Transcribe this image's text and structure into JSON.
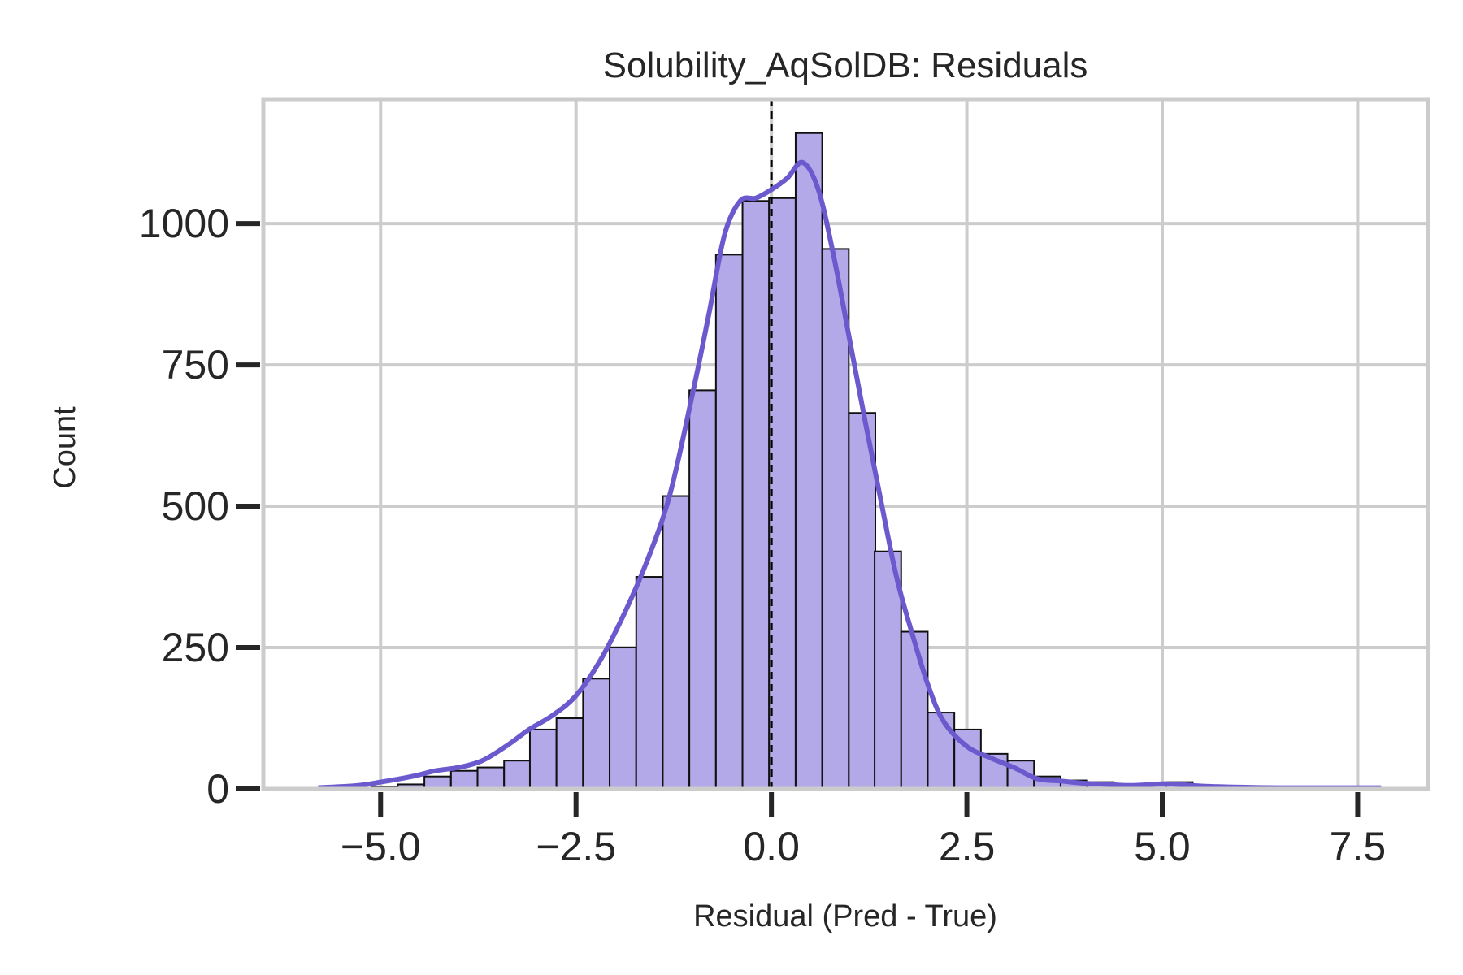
{
  "chart_data": {
    "type": "bar",
    "subtype": "histogram-with-kde",
    "title": "Solubility_AqSolDB: Residuals",
    "xlabel": "Residual (Pred - True)",
    "ylabel": "Count",
    "xlim": [
      -6.5,
      8.4
    ],
    "ylim": [
      0,
      1220
    ],
    "xticks": [
      -5.0,
      -2.5,
      0.0,
      2.5,
      5.0,
      7.5
    ],
    "xtick_labels": [
      "−5.0",
      "−2.5",
      "0.0",
      "2.5",
      "5.0",
      "7.5"
    ],
    "yticks": [
      0,
      250,
      500,
      750,
      1000
    ],
    "ytick_labels": [
      "0",
      "250",
      "500",
      "750",
      "1000"
    ],
    "grid": true,
    "reference_line": {
      "x": 0.0,
      "style": "dashed",
      "color": "#000000"
    },
    "bin_width": 0.3396,
    "bins": [
      {
        "left": -5.8,
        "count": 1
      },
      {
        "left": -5.46,
        "count": 2
      },
      {
        "left": -5.12,
        "count": 4
      },
      {
        "left": -4.78,
        "count": 8
      },
      {
        "left": -4.44,
        "count": 22
      },
      {
        "left": -4.1,
        "count": 32
      },
      {
        "left": -3.76,
        "count": 38
      },
      {
        "left": -3.42,
        "count": 50
      },
      {
        "left": -3.09,
        "count": 105
      },
      {
        "left": -2.75,
        "count": 125
      },
      {
        "left": -2.41,
        "count": 195
      },
      {
        "left": -2.07,
        "count": 250
      },
      {
        "left": -1.73,
        "count": 375
      },
      {
        "left": -1.39,
        "count": 518
      },
      {
        "left": -1.05,
        "count": 705
      },
      {
        "left": -0.71,
        "count": 945
      },
      {
        "left": -0.37,
        "count": 1040
      },
      {
        "left": -0.03,
        "count": 1045
      },
      {
        "left": 0.31,
        "count": 1160
      },
      {
        "left": 0.65,
        "count": 955
      },
      {
        "left": 0.99,
        "count": 665
      },
      {
        "left": 1.32,
        "count": 420
      },
      {
        "left": 1.66,
        "count": 278
      },
      {
        "left": 2.0,
        "count": 135
      },
      {
        "left": 2.34,
        "count": 105
      },
      {
        "left": 2.68,
        "count": 62
      },
      {
        "left": 3.02,
        "count": 50
      },
      {
        "left": 3.36,
        "count": 22
      },
      {
        "left": 3.7,
        "count": 15
      },
      {
        "left": 4.04,
        "count": 12
      },
      {
        "left": 4.38,
        "count": 6
      },
      {
        "left": 4.71,
        "count": 8
      },
      {
        "left": 5.05,
        "count": 12
      },
      {
        "left": 5.39,
        "count": 5
      },
      {
        "left": 5.73,
        "count": 2
      },
      {
        "left": 6.07,
        "count": 2
      },
      {
        "left": 6.41,
        "count": 1
      },
      {
        "left": 6.75,
        "count": 1
      },
      {
        "left": 7.09,
        "count": 1
      },
      {
        "left": 7.43,
        "count": 1
      }
    ],
    "kde": {
      "x": [
        -5.8,
        -5.3,
        -5.0,
        -4.6,
        -4.3,
        -4.0,
        -3.7,
        -3.4,
        -3.1,
        -2.8,
        -2.5,
        -2.2,
        -1.9,
        -1.6,
        -1.3,
        -1.0,
        -0.8,
        -0.6,
        -0.4,
        -0.2,
        0.0,
        0.2,
        0.4,
        0.6,
        0.8,
        1.0,
        1.2,
        1.4,
        1.6,
        1.8,
        2.0,
        2.2,
        2.5,
        2.8,
        3.1,
        3.4,
        3.7,
        4.0,
        4.3,
        4.6,
        5.0,
        5.2,
        5.5,
        6.0,
        6.5,
        7.0,
        7.5,
        7.8
      ],
      "y": [
        2,
        6,
        12,
        22,
        32,
        38,
        50,
        75,
        105,
        130,
        165,
        225,
        305,
        400,
        520,
        705,
        840,
        980,
        1040,
        1045,
        1060,
        1080,
        1108,
        1060,
        940,
        795,
        650,
        510,
        375,
        275,
        185,
        120,
        75,
        55,
        38,
        18,
        14,
        10,
        8,
        6,
        9,
        8,
        5,
        3,
        2,
        2,
        2,
        2
      ]
    },
    "colors": {
      "bar_fill": "#b3a9e8",
      "bar_edge": "#111111",
      "kde_line": "#6a5acd",
      "grid": "#cccccc",
      "frame": "#cccccc",
      "text": "#262626"
    }
  }
}
